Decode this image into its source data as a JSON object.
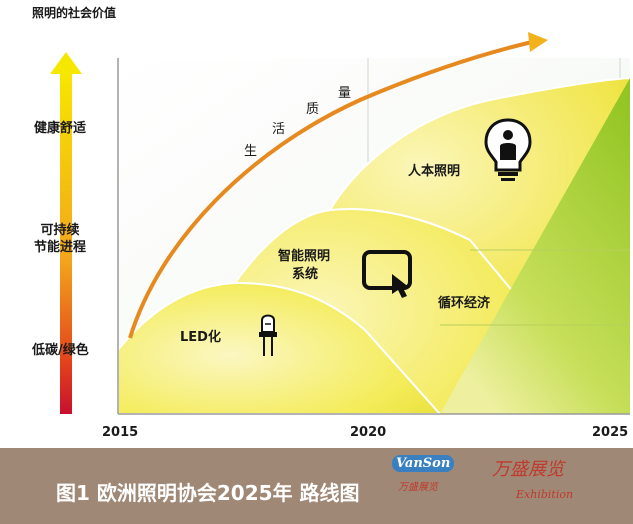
{
  "y_axis_title": "照明的社会价值",
  "y_levels": [
    "健康舒适",
    "可持续\n节能进程",
    "低碳/绿色"
  ],
  "x_ticks": [
    "2015",
    "2020",
    "2025"
  ],
  "regions": {
    "led": "LED化",
    "smart": "智能照明\n系统",
    "human": "人本照明",
    "circular": "循环经济"
  },
  "curve_label": [
    "生",
    "活",
    "质",
    "量"
  ],
  "caption": "图1 欧洲照明协会2025年   路线图",
  "watermark": {
    "en": "VanSon",
    "cn_small": "万盛展览",
    "cn": "万盛展览",
    "sub": "Exhibition"
  },
  "colors": {
    "gradient_top": "#f6e700",
    "gradient_mid": "#f3a51c",
    "gradient_bottom": "#c8102e",
    "green": "#8fc31f",
    "yellow": "#f6f07a",
    "arrow": "#e68a1f"
  }
}
